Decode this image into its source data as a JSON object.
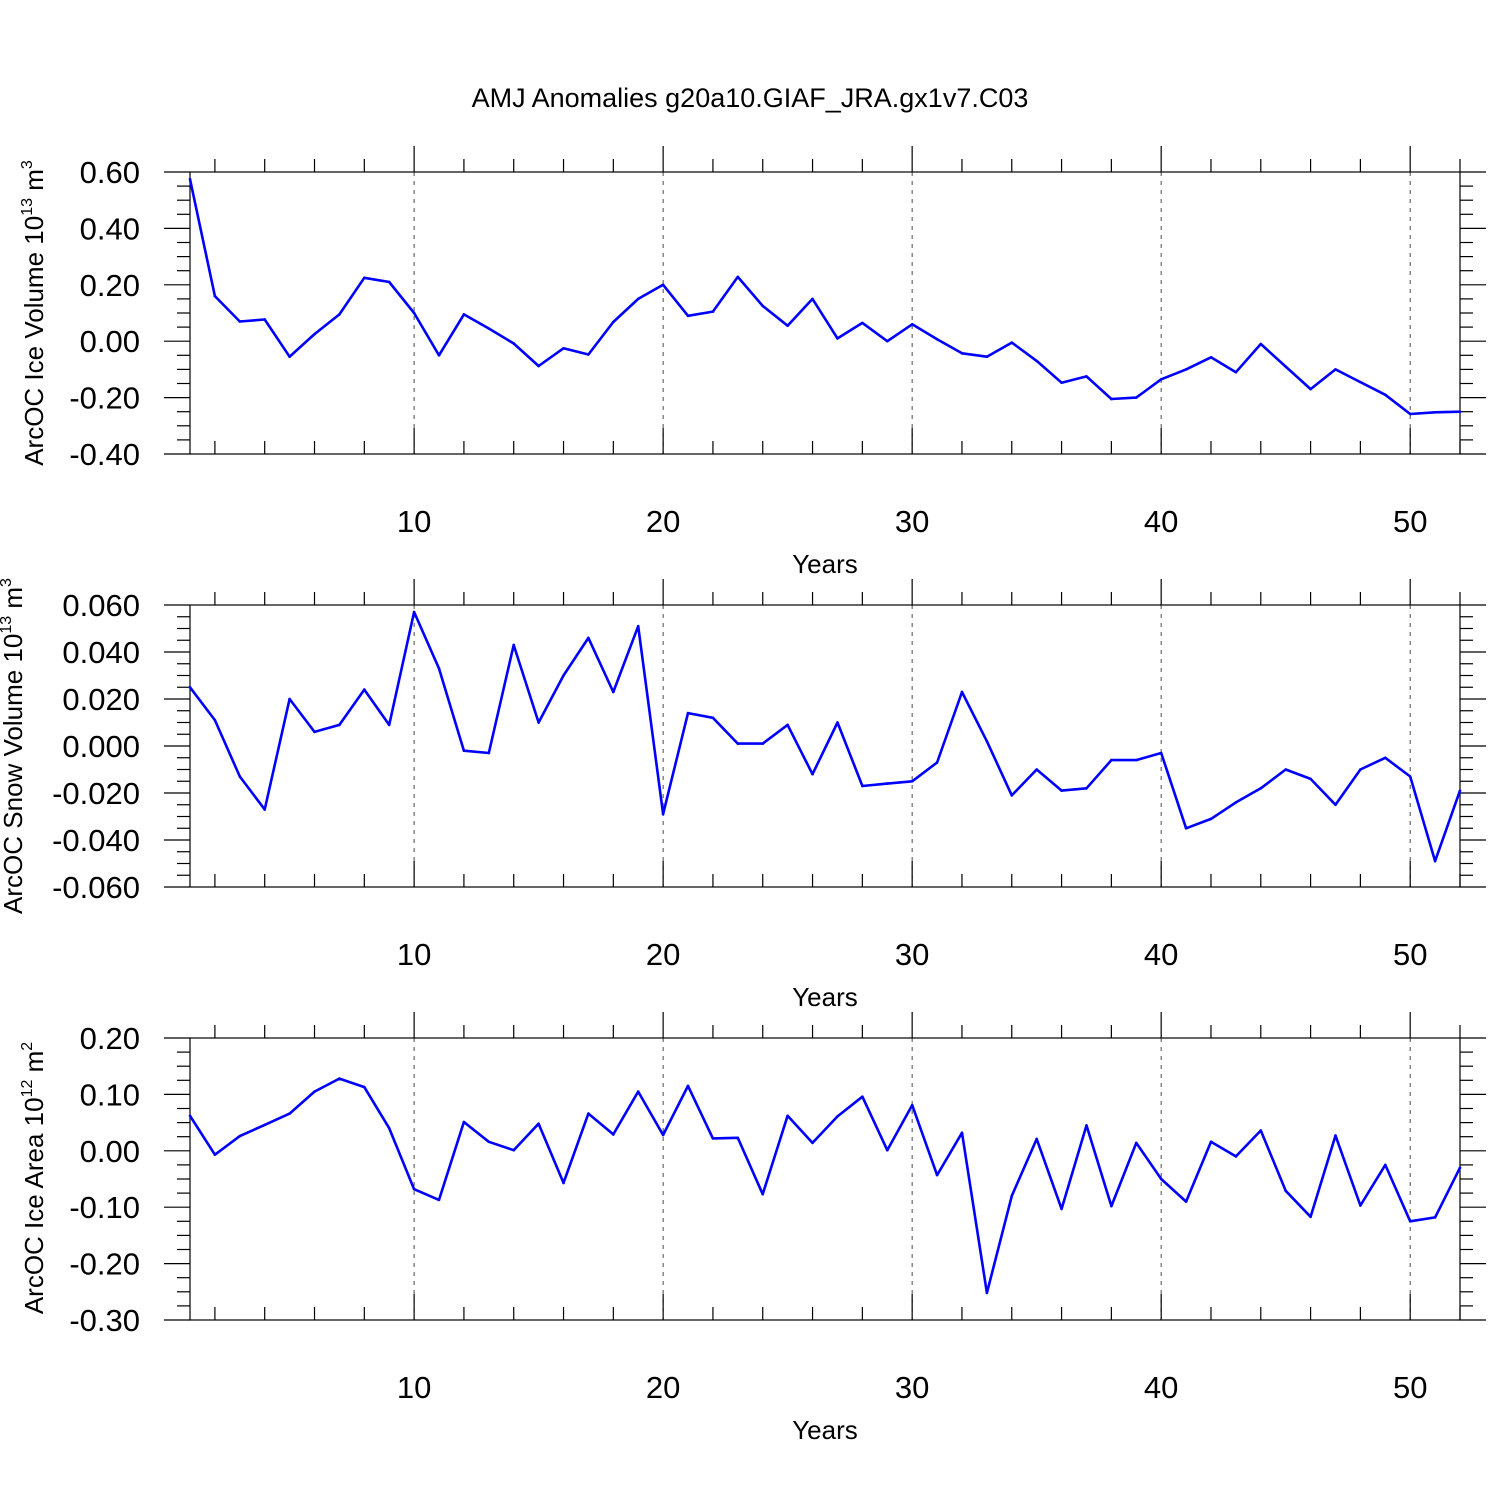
{
  "title": "AMJ Anomalies g20a10.GIAF_JRA.gx1v7.C03",
  "colors": {
    "line": "#0000ff",
    "axis": "#000000",
    "background": "#ffffff"
  },
  "chart_data": [
    {
      "type": "line",
      "xlabel": "Years",
      "ylabel_base": "ArcOC Ice Volume 10",
      "ylabel_exp": "13",
      "ylabel_unit": " m",
      "ylabel_unit_exp": "3",
      "xlim": [
        1,
        52
      ],
      "ylim": [
        -0.4,
        0.6
      ],
      "xticks": [
        10,
        20,
        30,
        40,
        50
      ],
      "xtick_labels": [
        "10",
        "20",
        "30",
        "40",
        "50"
      ],
      "yticks": [
        0.6,
        0.4,
        0.2,
        0.0,
        -0.2,
        -0.4
      ],
      "ytick_labels": [
        "0.60",
        "0.40",
        "0.20",
        "0.00",
        "-0.20",
        "-0.40"
      ],
      "y_minor_step": 0.05,
      "grid": "vertical dashed at major x ticks",
      "x": [
        1,
        2,
        3,
        4,
        5,
        6,
        7,
        8,
        9,
        10,
        11,
        12,
        13,
        14,
        15,
        16,
        17,
        18,
        19,
        20,
        21,
        22,
        23,
        24,
        25,
        26,
        27,
        28,
        29,
        30,
        31,
        32,
        33,
        34,
        35,
        36,
        37,
        38,
        39,
        40,
        41,
        42,
        43,
        44,
        45,
        46,
        47,
        48,
        49,
        50,
        51,
        52
      ],
      "values": [
        0.575,
        0.16,
        0.07,
        0.077,
        -0.055,
        0.025,
        0.095,
        0.225,
        0.21,
        0.1,
        -0.05,
        0.095,
        0.045,
        -0.008,
        -0.088,
        -0.025,
        -0.047,
        0.068,
        0.15,
        0.2,
        0.09,
        0.105,
        0.228,
        0.125,
        0.055,
        0.15,
        0.01,
        0.065,
        0.0,
        0.06,
        0.007,
        -0.043,
        -0.055,
        -0.005,
        -0.07,
        -0.147,
        -0.125,
        -0.205,
        -0.2,
        -0.135,
        -0.1,
        -0.057,
        -0.11,
        -0.01,
        -0.09,
        -0.17,
        -0.1,
        -0.145,
        -0.19,
        -0.258,
        -0.252,
        -0.25
      ]
    },
    {
      "type": "line",
      "xlabel": "Years",
      "ylabel_base": "ArcOC Snow Volume 10",
      "ylabel_exp": "13",
      "ylabel_unit": " m",
      "ylabel_unit_exp": "3",
      "xlim": [
        1,
        52
      ],
      "ylim": [
        -0.06,
        0.06
      ],
      "xticks": [
        10,
        20,
        30,
        40,
        50
      ],
      "xtick_labels": [
        "10",
        "20",
        "30",
        "40",
        "50"
      ],
      "yticks": [
        0.06,
        0.04,
        0.02,
        0.0,
        -0.02,
        -0.04,
        -0.06
      ],
      "ytick_labels": [
        "0.060",
        "0.040",
        "0.020",
        "0.000",
        "-0.020",
        "-0.040",
        "-0.060"
      ],
      "y_minor_step": 0.005,
      "grid": "vertical dashed at major x ticks",
      "x": [
        1,
        2,
        3,
        4,
        5,
        6,
        7,
        8,
        9,
        10,
        11,
        12,
        13,
        14,
        15,
        16,
        17,
        18,
        19,
        20,
        21,
        22,
        23,
        24,
        25,
        26,
        27,
        28,
        29,
        30,
        31,
        32,
        33,
        34,
        35,
        36,
        37,
        38,
        39,
        40,
        41,
        42,
        43,
        44,
        45,
        46,
        47,
        48,
        49,
        50,
        51,
        52
      ],
      "values": [
        0.025,
        0.011,
        -0.013,
        -0.027,
        0.02,
        0.006,
        0.009,
        0.024,
        0.009,
        0.057,
        0.033,
        -0.002,
        -0.003,
        0.043,
        0.01,
        0.03,
        0.046,
        0.023,
        0.051,
        -0.029,
        0.014,
        0.012,
        0.001,
        0.001,
        0.009,
        -0.012,
        0.01,
        -0.017,
        -0.016,
        -0.015,
        -0.007,
        0.023,
        0.002,
        -0.021,
        -0.01,
        -0.019,
        -0.018,
        -0.006,
        -0.006,
        -0.003,
        -0.035,
        -0.031,
        -0.024,
        -0.018,
        -0.01,
        -0.014,
        -0.025,
        -0.01,
        -0.005,
        -0.013,
        -0.049,
        -0.019
      ]
    },
    {
      "type": "line",
      "xlabel": "Years",
      "ylabel_base": "ArcOC Ice Area 10",
      "ylabel_exp": "12",
      "ylabel_unit": " m",
      "ylabel_unit_exp": "2",
      "xlim": [
        1,
        52
      ],
      "ylim": [
        -0.3,
        0.2
      ],
      "xticks": [
        10,
        20,
        30,
        40,
        50
      ],
      "xtick_labels": [
        "10",
        "20",
        "30",
        "40",
        "50"
      ],
      "yticks": [
        0.2,
        0.1,
        0.0,
        -0.1,
        -0.2,
        -0.3
      ],
      "ytick_labels": [
        "0.20",
        "0.10",
        "0.00",
        "-0.10",
        "-0.20",
        "-0.30"
      ],
      "y_minor_step": 0.025,
      "grid": "vertical dashed at major x ticks",
      "x": [
        1,
        2,
        3,
        4,
        5,
        6,
        7,
        8,
        9,
        10,
        11,
        12,
        13,
        14,
        15,
        16,
        17,
        18,
        19,
        20,
        21,
        22,
        23,
        24,
        25,
        26,
        27,
        28,
        29,
        30,
        31,
        32,
        33,
        34,
        35,
        36,
        37,
        38,
        39,
        40,
        41,
        42,
        43,
        44,
        45,
        46,
        47,
        48,
        49,
        50,
        51,
        52
      ],
      "values": [
        0.062,
        -0.007,
        0.026,
        0.046,
        0.066,
        0.105,
        0.128,
        0.113,
        0.04,
        -0.068,
        -0.087,
        0.051,
        0.016,
        0.001,
        0.048,
        -0.057,
        0.066,
        0.029,
        0.105,
        0.028,
        0.115,
        0.022,
        0.023,
        -0.077,
        0.062,
        0.014,
        0.061,
        0.096,
        0.001,
        0.081,
        -0.043,
        0.032,
        -0.252,
        -0.08,
        0.021,
        -0.103,
        0.045,
        -0.098,
        0.014,
        -0.05,
        -0.09,
        0.016,
        -0.01,
        0.036,
        -0.071,
        -0.117,
        0.027,
        -0.097,
        -0.025,
        -0.125,
        -0.118,
        -0.03
      ]
    }
  ]
}
